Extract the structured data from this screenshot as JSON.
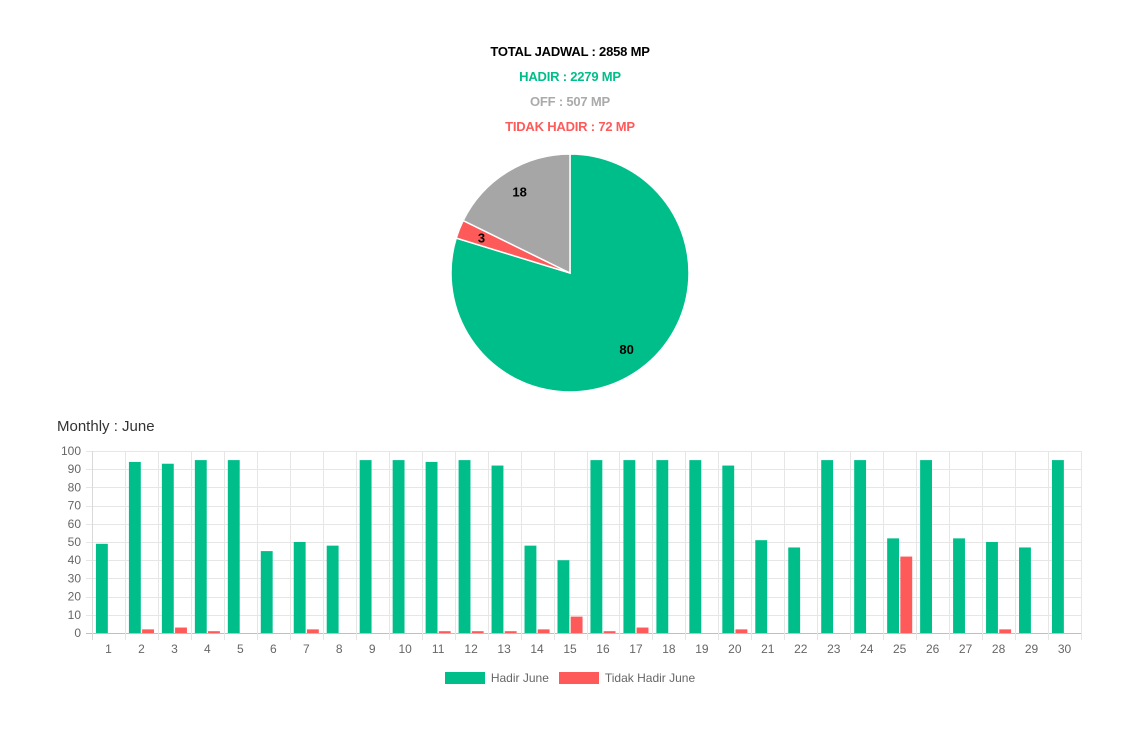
{
  "summary": {
    "total": "TOTAL JADWAL : 2858 MP",
    "hadir": "HADIR : 2279 MP",
    "off": "OFF : 507 MP",
    "tidak_hadir": "TIDAK HADIR : 72 MP"
  },
  "colors": {
    "total": "#000000",
    "hadir": "#00BE8A",
    "off": "#AAAAAA",
    "tidak_hadir": "#FF5A5A",
    "axis_text": "#666666",
    "grid": "#E6E6E6",
    "zero_line": "#BFBFBF"
  },
  "chart_data": [
    {
      "type": "pie",
      "values": [
        2279,
        72,
        507
      ],
      "data_labels": [
        "80",
        "3",
        "18"
      ],
      "colors": [
        "#00BE8A",
        "#FF5A5A",
        "#A6A6A6"
      ]
    },
    {
      "type": "bar",
      "title": "Monthly : June",
      "categories": [
        "1",
        "2",
        "3",
        "4",
        "5",
        "6",
        "7",
        "8",
        "9",
        "10",
        "11",
        "12",
        "13",
        "14",
        "15",
        "16",
        "17",
        "18",
        "19",
        "20",
        "21",
        "22",
        "23",
        "24",
        "25",
        "26",
        "27",
        "28",
        "29",
        "30"
      ],
      "series": [
        {
          "name": "Hadir June",
          "color": "#00BE8A",
          "values": [
            49,
            94,
            93,
            95,
            95,
            45,
            50,
            48,
            95,
            95,
            94,
            95,
            92,
            48,
            40,
            95,
            95,
            95,
            95,
            92,
            51,
            47,
            95,
            95,
            52,
            95,
            52,
            50,
            47,
            95
          ]
        },
        {
          "name": "Tidak Hadir June",
          "color": "#FF5A5A",
          "values": [
            0,
            2,
            3,
            1,
            0,
            0,
            2,
            0,
            0,
            0,
            1,
            1,
            1,
            2,
            9,
            1,
            3,
            0,
            0,
            2,
            0,
            0,
            0,
            0,
            42,
            0,
            0,
            2,
            0,
            0
          ]
        }
      ],
      "ylim": [
        0,
        100
      ],
      "yticks": [
        0,
        10,
        20,
        30,
        40,
        50,
        60,
        70,
        80,
        90,
        100
      ],
      "grid": true,
      "legend": "bottom"
    }
  ]
}
